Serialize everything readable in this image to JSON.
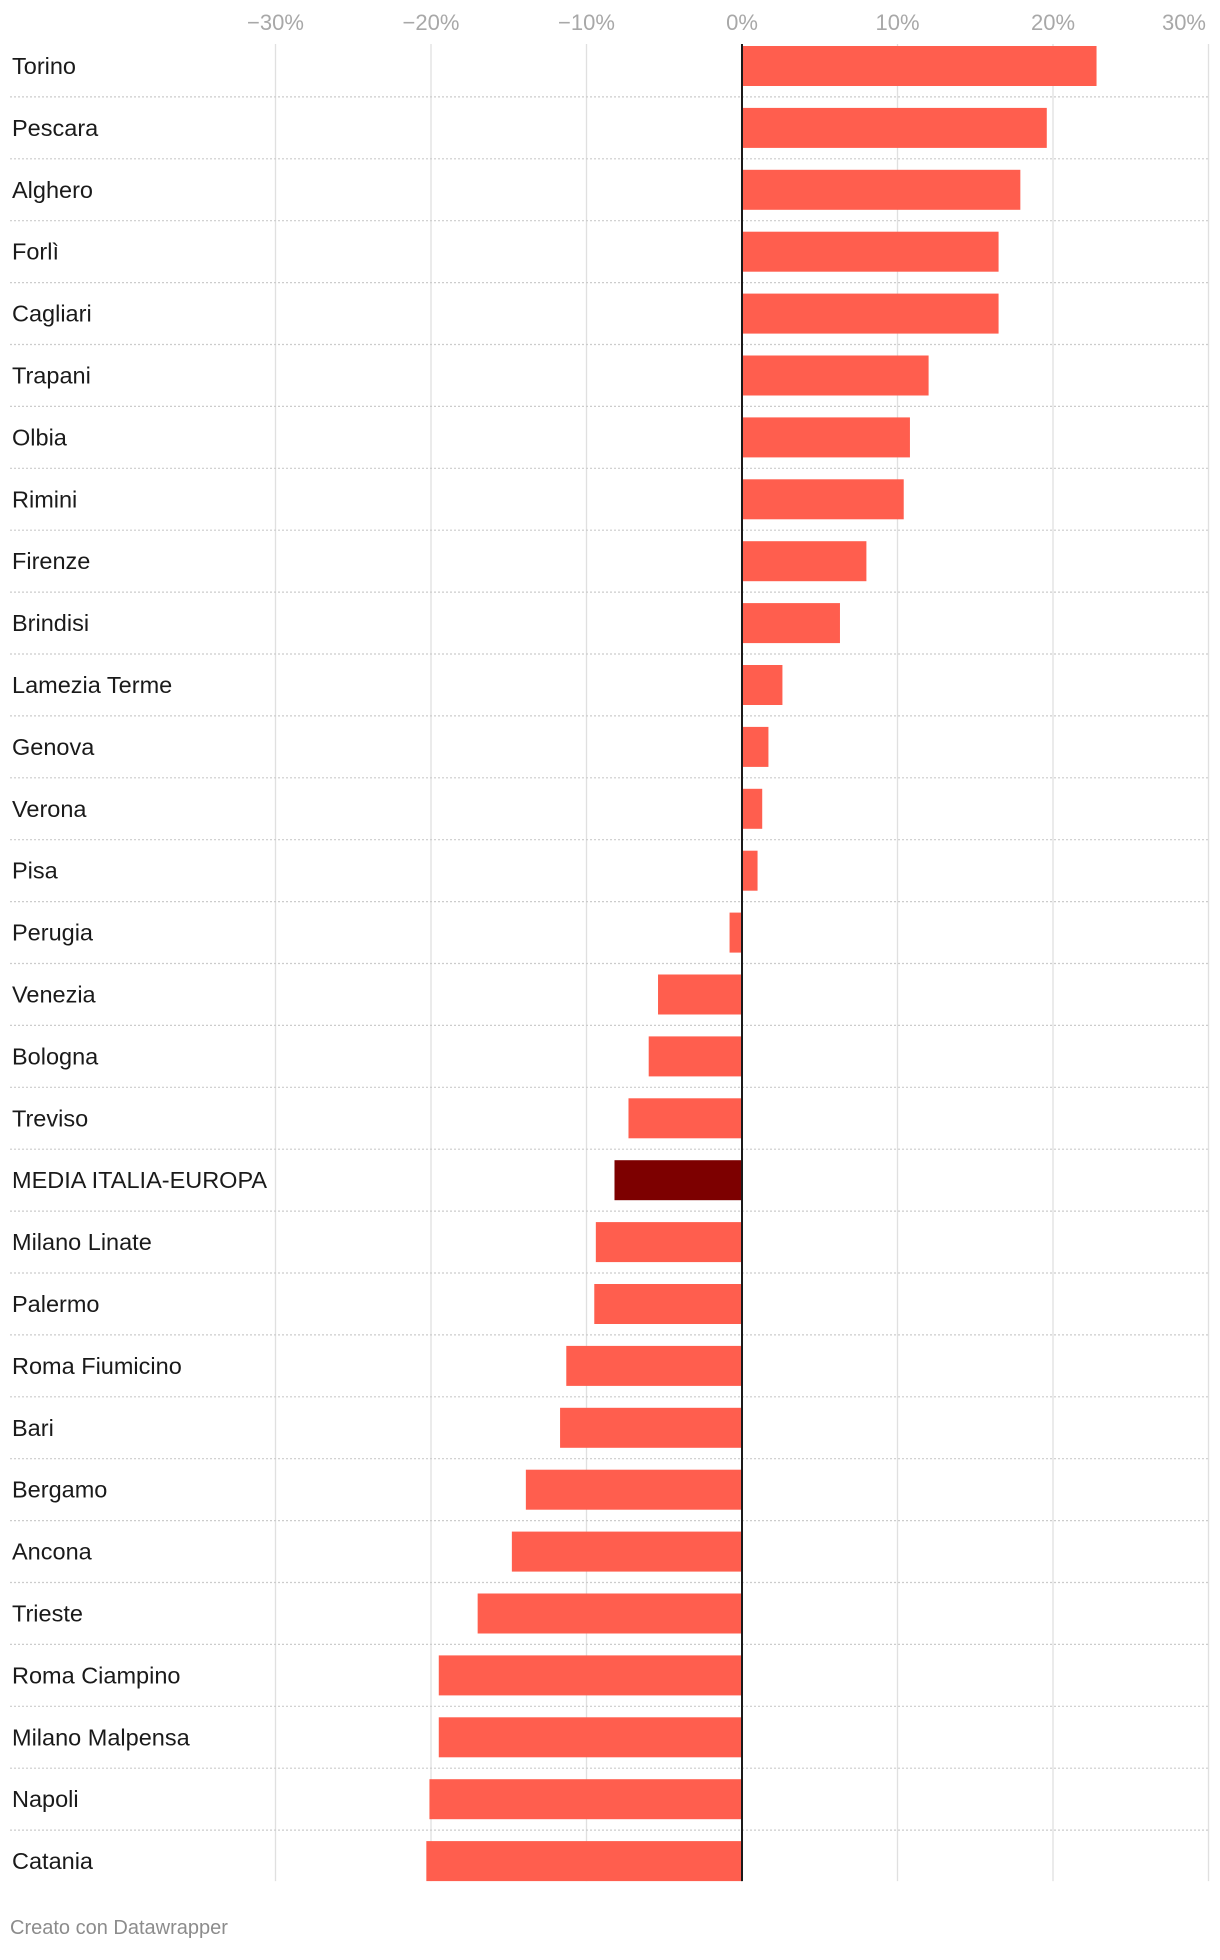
{
  "chart_data": {
    "type": "bar",
    "orientation": "horizontal",
    "title": "",
    "xlabel": "",
    "ylabel": "",
    "xlim": [
      -30,
      30
    ],
    "ticks": [
      -30,
      -20,
      -10,
      0,
      10,
      20,
      30
    ],
    "tick_labels": [
      "−30%",
      "−20%",
      "−10%",
      "0%",
      "10%",
      "20%",
      "30%"
    ],
    "categories": [
      "Torino",
      "Pescara",
      "Alghero",
      "Forlì",
      "Cagliari",
      "Trapani",
      "Olbia",
      "Rimini",
      "Firenze",
      "Brindisi",
      "Lamezia Terme",
      "Genova",
      "Verona",
      "Pisa",
      "Perugia",
      "Venezia",
      "Bologna",
      "Treviso",
      "MEDIA ITALIA-EUROPA",
      "Milano Linate",
      "Palermo",
      "Roma Fiumicino",
      "Bari",
      "Bergamo",
      "Ancona",
      "Trieste",
      "Roma Ciampino",
      "Milano Malpensa",
      "Napoli",
      "Catania"
    ],
    "values": [
      22.8,
      19.6,
      17.9,
      16.5,
      16.5,
      12.0,
      10.8,
      10.4,
      8.0,
      6.3,
      2.6,
      1.7,
      1.3,
      1.0,
      -0.8,
      -5.4,
      -6.0,
      -7.3,
      -8.2,
      -9.4,
      -9.5,
      -11.3,
      -11.7,
      -13.9,
      -14.8,
      -17.0,
      -19.5,
      -19.5,
      -20.1,
      -20.3
    ],
    "highlight": "MEDIA ITALIA-EUROPA",
    "grid": true,
    "legend": "none"
  },
  "colors": {
    "bar": "#ff5e4e",
    "highlight_bar": "#7d0000",
    "grid": "#e0e0e0",
    "row_separator": "#cccccc",
    "zero_line": "#1a1a1a"
  },
  "footer": {
    "credit": "Creato con Datawrapper"
  }
}
